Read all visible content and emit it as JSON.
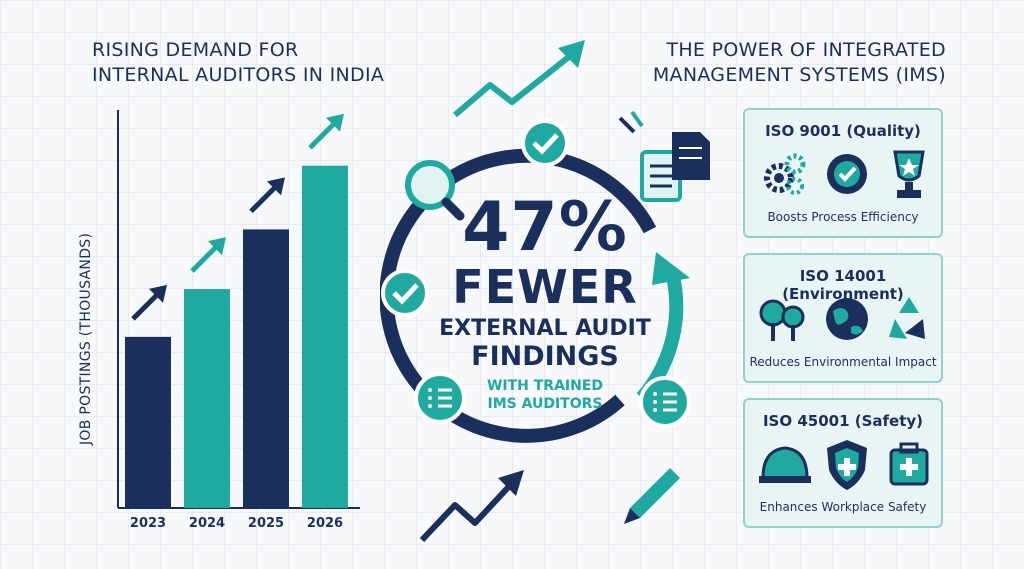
{
  "left_title": [
    "RISING DEMAND FOR",
    "INTERNAL AUDITORS IN INDIA"
  ],
  "right_title": [
    "THE POWER OF INTEGRATED",
    "MANAGEMENT SYSTEMS (IMS)"
  ],
  "chart_data": {
    "type": "bar",
    "categories": [
      "2023",
      "2024",
      "2025",
      "2026"
    ],
    "values": [
      43,
      55,
      70,
      86
    ],
    "ylabel": "JOB POSTINGS (THOUSANDS)",
    "ylim": [
      0,
      100
    ],
    "colors": [
      "#1b2f5c",
      "#1fa9a0",
      "#1b2f5c",
      "#1fa9a0"
    ]
  },
  "stat": {
    "percent": "47%",
    "fewer": "FEWER",
    "external": "EXTERNAL AUDIT",
    "findings": "FINDINGS",
    "with_line1": "WITH TRAINED",
    "with_line2": "IMS AUDITORS"
  },
  "cards": [
    {
      "title": "ISO 9001 (Quality)",
      "caption": "Boosts Process Efficiency",
      "icons": [
        "gears-icon",
        "check-badge-icon",
        "trophy-icon"
      ]
    },
    {
      "title": "ISO 14001 (Environment)",
      "caption": "Reduces Environmental Impact",
      "icons": [
        "trees-icon",
        "globe-icon",
        "recycle-icon"
      ]
    },
    {
      "title": "ISO 45001 (Safety)",
      "caption": "Enhances Workplace Safety",
      "icons": [
        "hard-hat-icon",
        "shield-cross-icon",
        "first-aid-kit-icon"
      ]
    }
  ],
  "colors": {
    "navy": "#1b2f5c",
    "teal": "#1fa9a0",
    "card_border": "#8fd3cd"
  }
}
